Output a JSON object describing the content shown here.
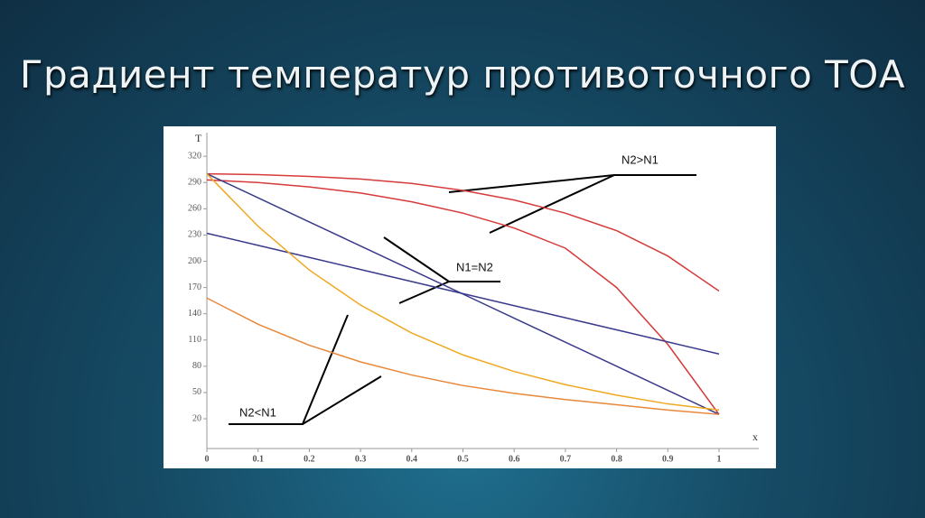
{
  "title": "Градиент температур противоточного ТОА",
  "chart_data": {
    "type": "line",
    "y_label": "T",
    "x_label": "x",
    "x": [
      0,
      0.1,
      0.2,
      0.3,
      0.4,
      0.5,
      0.6,
      0.7,
      0.8,
      0.9,
      1
    ],
    "xlim": [
      0,
      1
    ],
    "xticks": [
      0,
      0.1,
      0.2,
      0.3,
      0.4,
      0.5,
      0.6,
      0.7,
      0.8,
      0.9,
      1
    ],
    "ylim": [
      -14,
      347
    ],
    "yticks": [
      20,
      50,
      80,
      110,
      140,
      170,
      200,
      230,
      260,
      290,
      320
    ],
    "series": [
      {
        "color": "#d63a3a",
        "values": [
          300,
          299,
          297,
          294,
          289,
          281,
          270,
          255,
          235,
          206,
          166
        ]
      },
      {
        "color": "#d63a3a",
        "values": [
          293,
          290,
          285,
          278,
          268,
          255,
          238,
          215,
          170,
          105,
          25
        ]
      },
      {
        "color": "#3a3a8c",
        "values": [
          300,
          272.5,
          245,
          217.5,
          190,
          162.5,
          135,
          107.5,
          80,
          52.5,
          25
        ]
      },
      {
        "color": "#3a3a8c",
        "values": [
          232,
          218.2,
          204.4,
          190.6,
          176.8,
          163,
          149.2,
          135.4,
          121.6,
          107.8,
          94
        ]
      },
      {
        "color": "#f0a820",
        "values": [
          300,
          240,
          190,
          150,
          118,
          93,
          74,
          59,
          47,
          37,
          30
        ]
      },
      {
        "color": "#e8883a",
        "values": [
          158,
          128,
          104,
          85,
          70,
          58,
          49,
          42,
          36,
          30,
          25
        ]
      }
    ],
    "annotations": [
      "N2>N1",
      "N1=N2",
      "N2<N1"
    ]
  }
}
